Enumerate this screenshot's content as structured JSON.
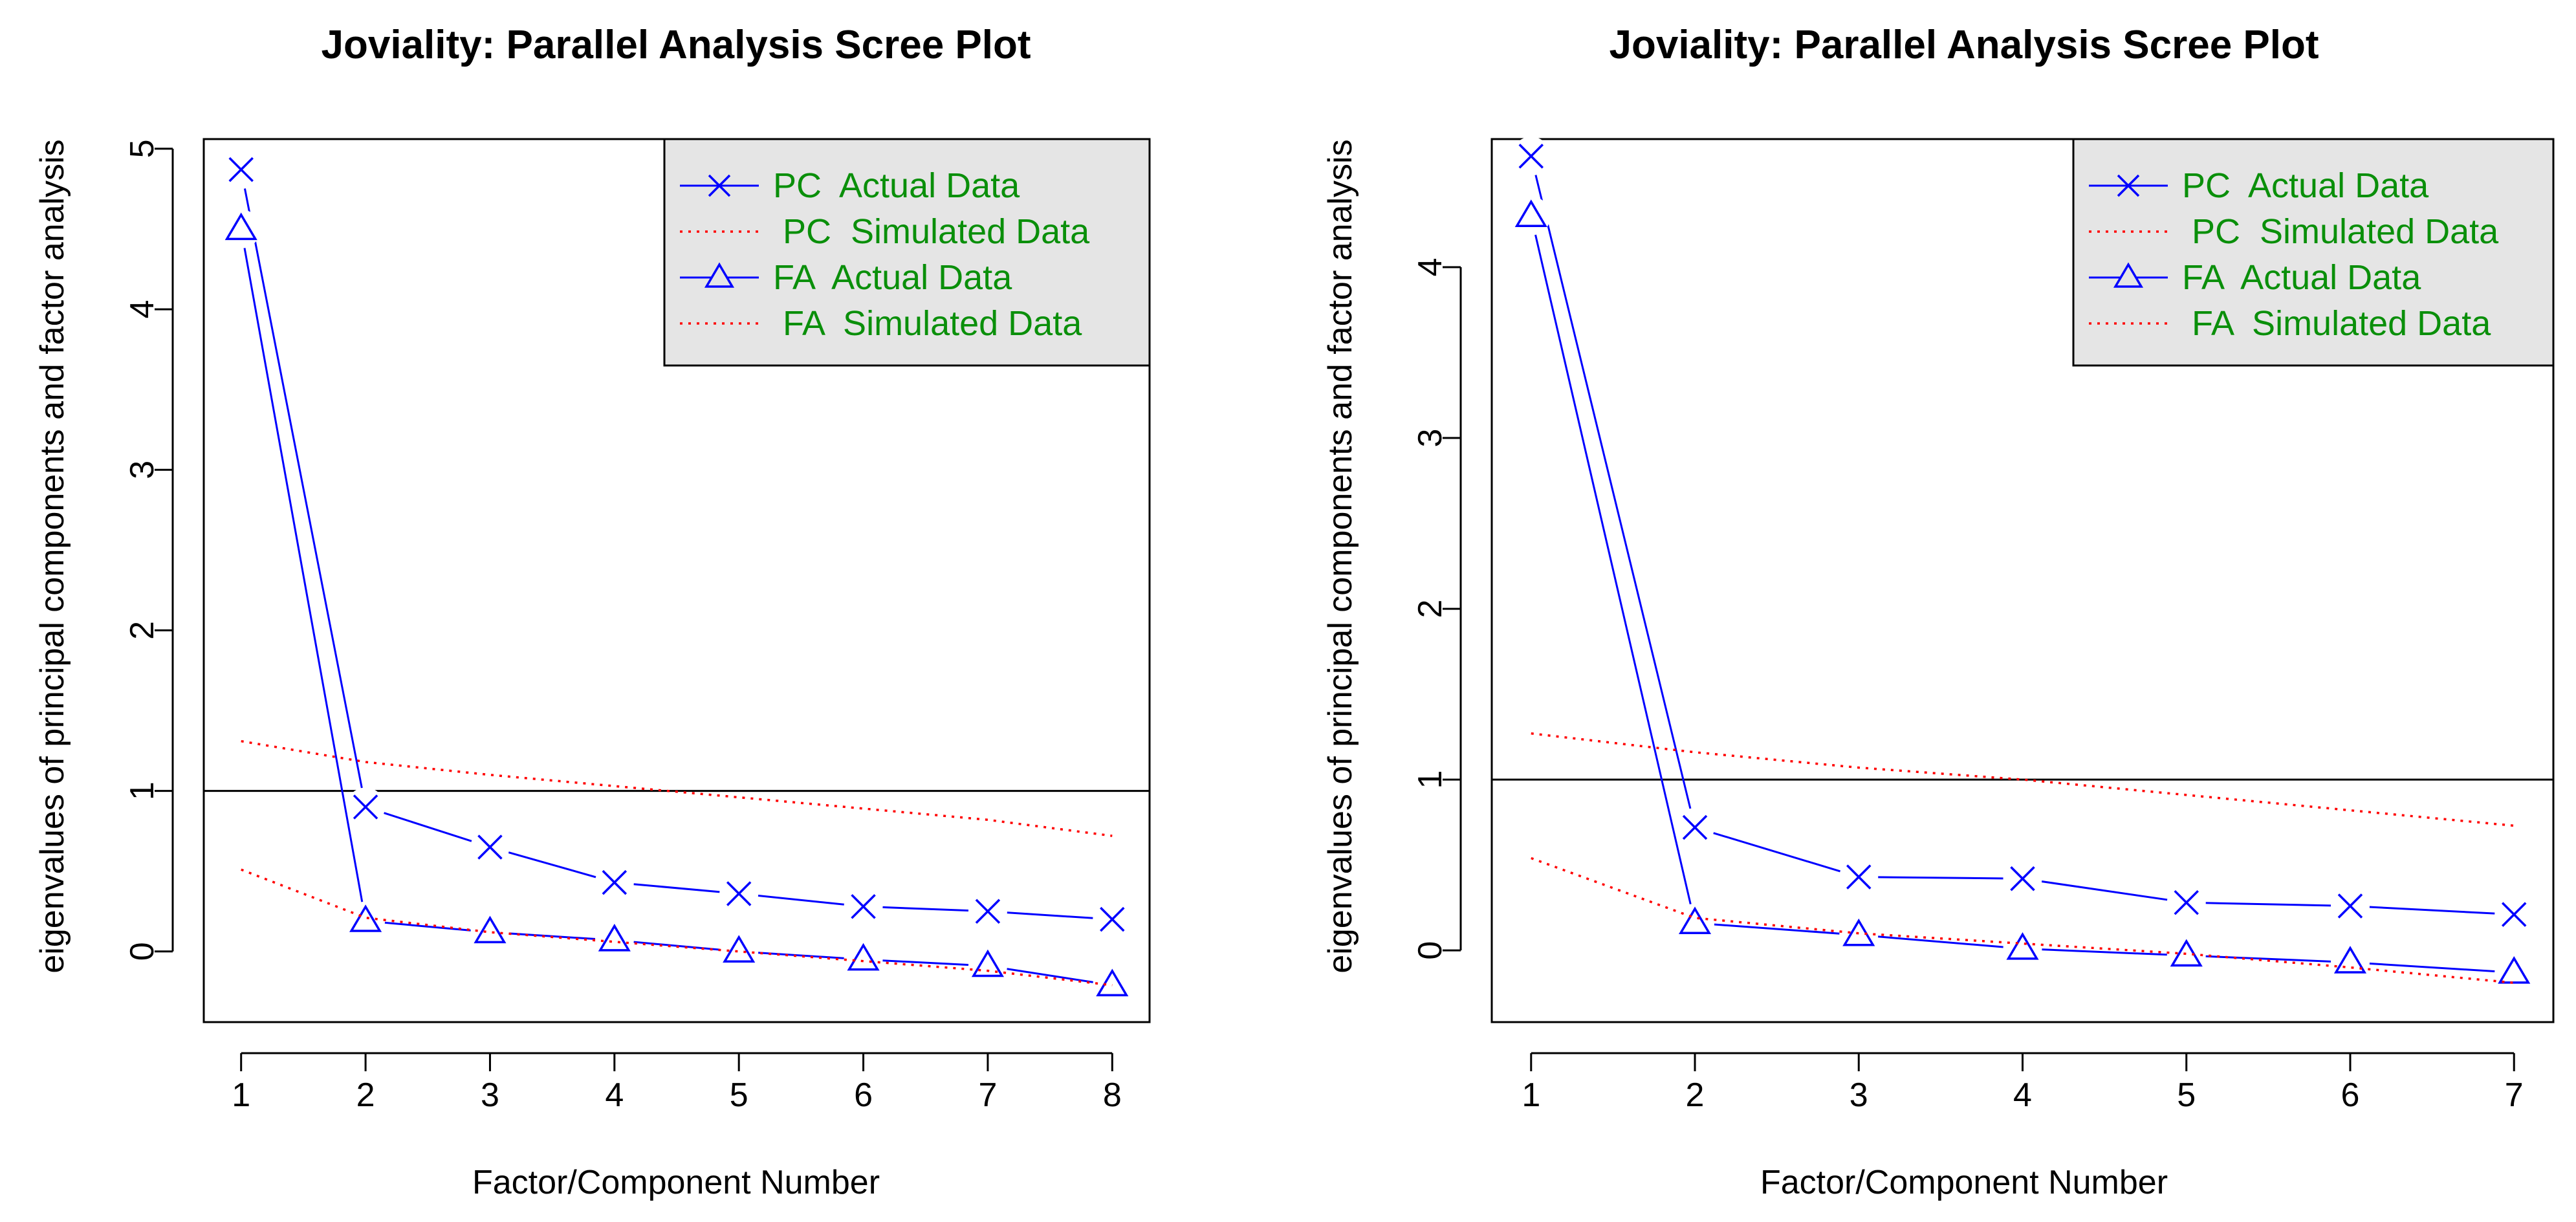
{
  "chart_data": [
    {
      "type": "line",
      "title": "Joviality: Parallel Analysis Scree Plot",
      "xlabel": "Factor/Component Number",
      "ylabel": "eigenvalues of principal components and factor analysis",
      "x": [
        1,
        2,
        3,
        4,
        5,
        6,
        7,
        8
      ],
      "xticks": [
        1,
        2,
        3,
        4,
        5,
        6,
        7,
        8
      ],
      "yticks": [
        0,
        1,
        2,
        3,
        4,
        5
      ],
      "xlim": [
        0.7,
        8.3
      ],
      "ylim": [
        -0.44,
        5.06
      ],
      "hline": 1,
      "series": [
        {
          "name": "PC  Actual Data",
          "style": "solid",
          "marker": "x",
          "color": "#0000ff",
          "values": [
            4.87,
            0.9,
            0.65,
            0.43,
            0.36,
            0.28,
            0.25,
            0.2
          ]
        },
        {
          "name": " PC  Simulated Data",
          "style": "dotted",
          "marker": "none",
          "color": "#ff0000",
          "values": [
            1.31,
            1.18,
            1.1,
            1.03,
            0.96,
            0.89,
            0.82,
            0.72
          ]
        },
        {
          "name": "FA  Actual Data",
          "style": "solid",
          "marker": "triangle",
          "color": "#0000ff",
          "values": [
            4.5,
            0.19,
            0.12,
            0.07,
            0.0,
            -0.05,
            -0.09,
            -0.21
          ]
        },
        {
          "name": " FA  Simulated Data",
          "style": "dotted",
          "marker": "none",
          "color": "#ff0000",
          "values": [
            0.51,
            0.21,
            0.12,
            0.06,
            0.0,
            -0.06,
            -0.12,
            -0.21
          ]
        }
      ],
      "legend": {
        "position": "top-right",
        "background": "#e5e5e5",
        "text_color": "#0a8f0a"
      }
    },
    {
      "type": "line",
      "title": "Joviality: Parallel Analysis Scree Plot",
      "xlabel": "Factor/Component Number",
      "ylabel": "eigenvalues of principal components and factor analysis",
      "x": [
        1,
        2,
        3,
        4,
        5,
        6,
        7
      ],
      "xticks": [
        1,
        2,
        3,
        4,
        5,
        6,
        7
      ],
      "yticks": [
        0,
        1,
        2,
        3,
        4
      ],
      "xlim": [
        0.76,
        7.24
      ],
      "ylim": [
        -0.42,
        4.75
      ],
      "hline": 1,
      "series": [
        {
          "name": "PC  Actual Data",
          "style": "solid",
          "marker": "x",
          "color": "#0000ff",
          "values": [
            4.65,
            0.72,
            0.43,
            0.42,
            0.28,
            0.26,
            0.21
          ]
        },
        {
          "name": " PC  Simulated Data",
          "style": "dotted",
          "marker": "none",
          "color": "#ff0000",
          "values": [
            1.27,
            1.16,
            1.07,
            1.0,
            0.91,
            0.82,
            0.73
          ]
        },
        {
          "name": "FA  Actual Data",
          "style": "solid",
          "marker": "triangle",
          "color": "#0000ff",
          "values": [
            4.3,
            0.16,
            0.09,
            0.01,
            -0.03,
            -0.07,
            -0.13
          ]
        },
        {
          "name": " FA  Simulated Data",
          "style": "dotted",
          "marker": "none",
          "color": "#ff0000",
          "values": [
            0.54,
            0.19,
            0.1,
            0.04,
            -0.02,
            -0.1,
            -0.19
          ]
        }
      ],
      "legend": {
        "position": "top-right",
        "background": "#e5e5e5",
        "text_color": "#0a8f0a"
      }
    }
  ]
}
